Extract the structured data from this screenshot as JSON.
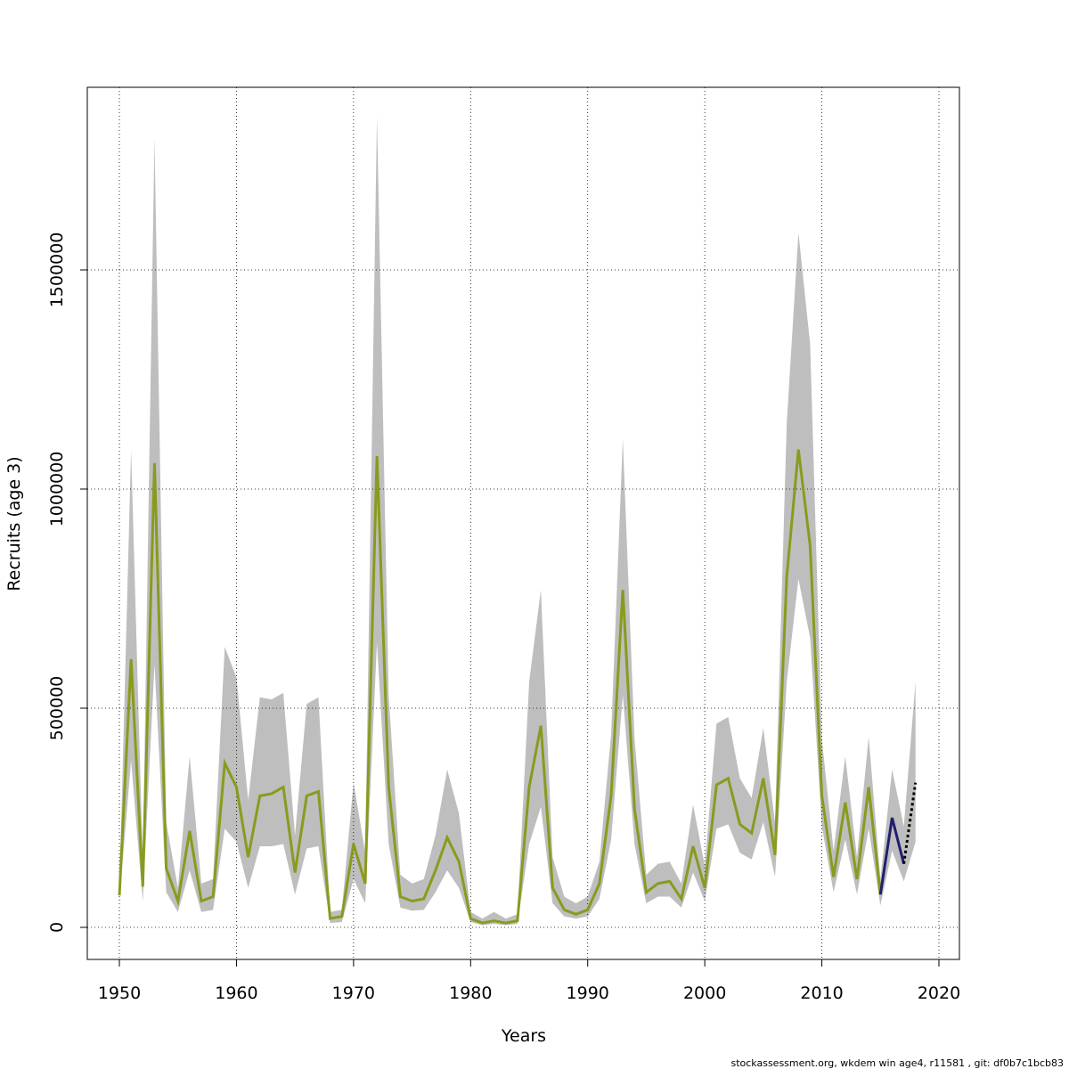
{
  "chart_data": {
    "type": "line",
    "xlabel": "Years",
    "ylabel": "Recruits (age 3)",
    "footer": "stockassessment.org, wkdem  win  age4, r11581 , git: df0b7c1bcb83",
    "x": [
      1950,
      1951,
      1952,
      1953,
      1954,
      1955,
      1956,
      1957,
      1958,
      1959,
      1960,
      1961,
      1962,
      1963,
      1964,
      1965,
      1966,
      1967,
      1968,
      1969,
      1970,
      1971,
      1972,
      1973,
      1974,
      1975,
      1976,
      1977,
      1978,
      1979,
      1980,
      1981,
      1982,
      1983,
      1984,
      1985,
      1986,
      1987,
      1988,
      1989,
      1990,
      1991,
      1992,
      1993,
      1994,
      1995,
      1996,
      1997,
      1998,
      1999,
      2000,
      2001,
      2002,
      2003,
      2004,
      2005,
      2006,
      2007,
      2008,
      2009,
      2010,
      2011,
      2012,
      2013,
      2014,
      2015,
      2016,
      2017,
      2018
    ],
    "band": {
      "color": "#bebebe",
      "upper": [
        80000,
        1090000,
        150000,
        1800000,
        240000,
        90000,
        390000,
        100000,
        110000,
        640000,
        570000,
        290000,
        525000,
        520000,
        535000,
        210000,
        510000,
        525000,
        35000,
        40000,
        330000,
        170000,
        1850000,
        530000,
        120000,
        100000,
        110000,
        210000,
        360000,
        260000,
        35000,
        20000,
        35000,
        20000,
        30000,
        560000,
        770000,
        160000,
        70000,
        55000,
        70000,
        150000,
        440000,
        1115000,
        430000,
        120000,
        145000,
        150000,
        100000,
        280000,
        140000,
        465000,
        480000,
        340000,
        295000,
        455000,
        240000,
        1150000,
        1585000,
        1330000,
        430000,
        175000,
        390000,
        160000,
        435000,
        110000,
        360000,
        230000,
        560000
      ],
      "lower": [
        60000,
        380000,
        60000,
        600000,
        80000,
        35000,
        130000,
        35000,
        40000,
        225000,
        195000,
        90000,
        185000,
        185000,
        190000,
        75000,
        180000,
        185000,
        10000,
        12000,
        110000,
        55000,
        650000,
        190000,
        45000,
        38000,
        40000,
        80000,
        130000,
        90000,
        12000,
        5000,
        8000,
        5000,
        8000,
        190000,
        275000,
        55000,
        25000,
        20000,
        25000,
        65000,
        200000,
        530000,
        190000,
        55000,
        70000,
        70000,
        45000,
        125000,
        60000,
        225000,
        235000,
        170000,
        155000,
        240000,
        115000,
        560000,
        795000,
        660000,
        230000,
        80000,
        200000,
        75000,
        225000,
        50000,
        175000,
        105000,
        195000
      ]
    },
    "series": [
      {
        "color": "#8a9a1e",
        "dashed": false,
        "values": [
          73000,
          612000,
          93000,
          1059000,
          135000,
          60000,
          220000,
          60000,
          70000,
          375000,
          320000,
          160000,
          300000,
          305000,
          320000,
          125000,
          300000,
          310000,
          20000,
          25000,
          190000,
          100000,
          1075000,
          320000,
          70000,
          60000,
          65000,
          130000,
          205000,
          150000,
          20000,
          10000,
          15000,
          10000,
          15000,
          320000,
          460000,
          90000,
          40000,
          30000,
          40000,
          100000,
          300000,
          770000,
          270000,
          80000,
          100000,
          105000,
          65000,
          185000,
          90000,
          325000,
          340000,
          235000,
          215000,
          340000,
          165000,
          800000,
          1090000,
          870000,
          300000,
          115000,
          285000,
          110000,
          320000,
          75000,
          null,
          null,
          null
        ]
      },
      {
        "color": "#20206e",
        "dashed": false,
        "values": [
          null,
          null,
          null,
          null,
          null,
          null,
          null,
          null,
          null,
          null,
          null,
          null,
          null,
          null,
          null,
          null,
          null,
          null,
          null,
          null,
          null,
          null,
          null,
          null,
          null,
          null,
          null,
          null,
          null,
          null,
          null,
          null,
          null,
          null,
          null,
          null,
          null,
          null,
          null,
          null,
          null,
          null,
          null,
          null,
          null,
          null,
          null,
          null,
          null,
          null,
          null,
          null,
          null,
          null,
          null,
          null,
          null,
          null,
          null,
          null,
          null,
          null,
          null,
          null,
          null,
          75000,
          250000,
          145000,
          null
        ]
      },
      {
        "color": "#000000",
        "dashed": true,
        "values": [
          null,
          null,
          null,
          null,
          null,
          null,
          null,
          null,
          null,
          null,
          null,
          null,
          null,
          null,
          null,
          null,
          null,
          null,
          null,
          null,
          null,
          null,
          null,
          null,
          null,
          null,
          null,
          null,
          null,
          null,
          null,
          null,
          null,
          null,
          null,
          null,
          null,
          null,
          null,
          null,
          null,
          null,
          null,
          null,
          null,
          null,
          null,
          null,
          null,
          null,
          null,
          null,
          null,
          null,
          null,
          null,
          null,
          null,
          null,
          null,
          null,
          null,
          null,
          null,
          null,
          null,
          null,
          145000,
          330000
        ]
      }
    ],
    "xlim": [
      1947.26,
      2021.75
    ],
    "ylim": [
      -73170,
      1916650
    ],
    "xticks": [
      1950,
      1960,
      1970,
      1980,
      1990,
      2000,
      2010,
      2020
    ],
    "yticks": [
      0,
      500000,
      1000000,
      1500000
    ],
    "grid": true
  }
}
